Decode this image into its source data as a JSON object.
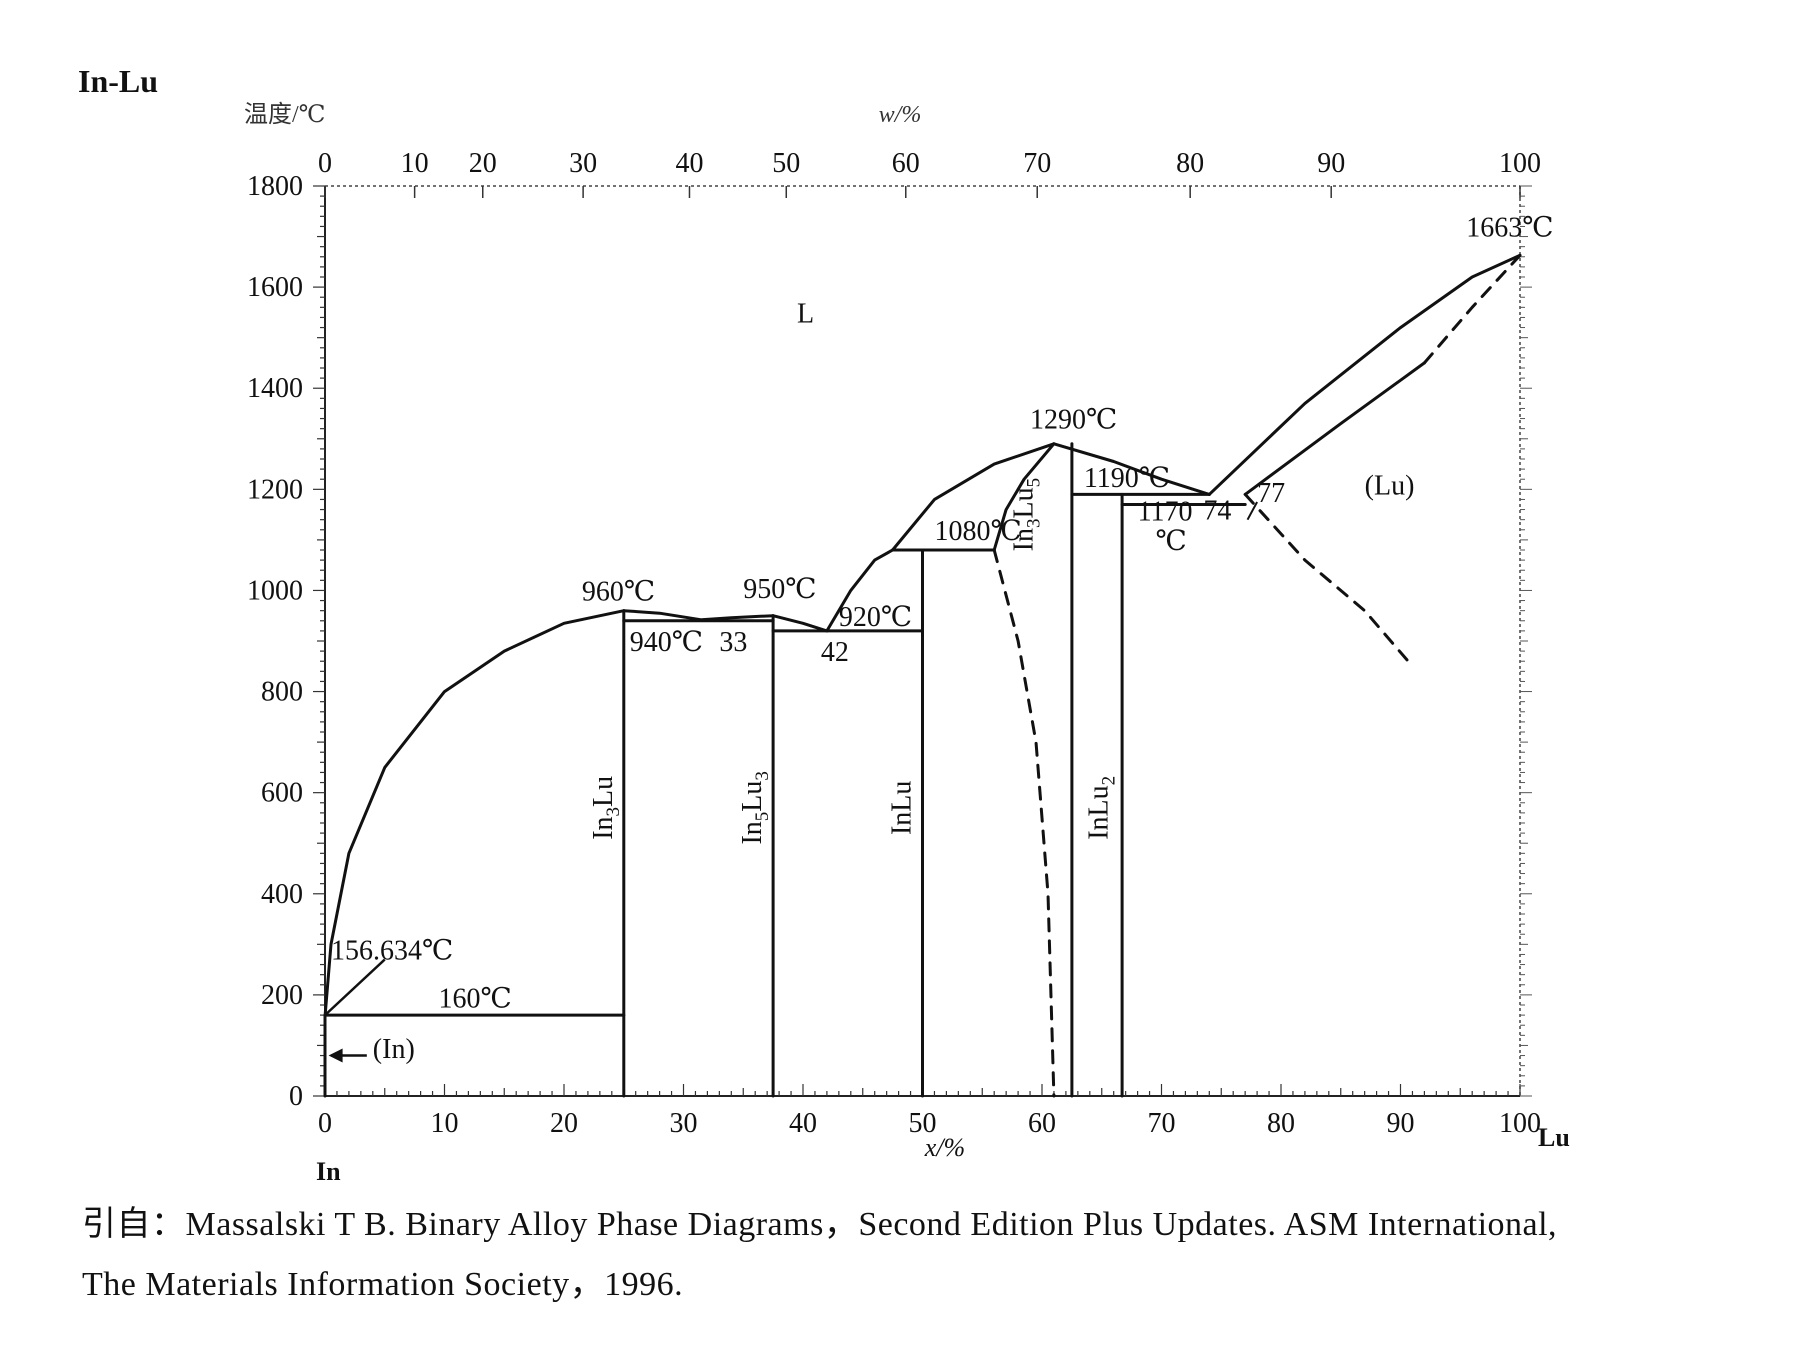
{
  "figure": {
    "system_label": "In-Lu",
    "left_axis_title": "温度/℃",
    "top_axis_title": "w/%",
    "bottom_axis_title": "x/%",
    "left_element": "In",
    "right_element": "Lu"
  },
  "chart_data": {
    "type": "line",
    "title": "In-Lu",
    "xlabel": "x/%",
    "ylabel": "温度/℃",
    "x2label": "w/%",
    "xlim": [
      0,
      100
    ],
    "ylim": [
      0,
      1800
    ],
    "x_ticks": [
      0,
      10,
      20,
      30,
      40,
      50,
      60,
      70,
      80,
      90,
      100
    ],
    "y_ticks": [
      0,
      200,
      400,
      600,
      800,
      1000,
      1200,
      1400,
      1600,
      1800
    ],
    "x2_ticks": [
      0,
      10,
      20,
      30,
      40,
      50,
      60,
      70,
      80,
      90,
      100
    ],
    "x2_tick_positions_at_percent": [
      0,
      7.5,
      13.2,
      21.6,
      30.5,
      38.6,
      48.6,
      59.6,
      72.4,
      84.2,
      100
    ],
    "grid": false,
    "legend": "none",
    "series": [
      {
        "style": "solid",
        "points": [
          [
            0,
            157
          ],
          [
            0.5,
            300
          ],
          [
            2,
            480
          ],
          [
            5,
            650
          ],
          [
            10,
            800
          ],
          [
            15,
            880
          ],
          [
            20,
            935
          ],
          [
            25,
            960
          ]
        ]
      },
      {
        "style": "solid",
        "points": [
          [
            25,
            960
          ],
          [
            28,
            955
          ],
          [
            31.5,
            942
          ],
          [
            34,
            946
          ],
          [
            37.5,
            950
          ]
        ]
      },
      {
        "style": "solid",
        "points": [
          [
            37.5,
            950
          ],
          [
            40,
            935
          ],
          [
            42,
            920
          ]
        ]
      },
      {
        "style": "solid",
        "points": [
          [
            42,
            920
          ],
          [
            44,
            1000
          ],
          [
            46,
            1060
          ],
          [
            47.5,
            1080
          ]
        ]
      },
      {
        "style": "solid",
        "points": [
          [
            47.5,
            1080
          ],
          [
            51,
            1180
          ],
          [
            56,
            1250
          ],
          [
            61,
            1290
          ]
        ]
      },
      {
        "style": "solid",
        "points": [
          [
            56,
            1080
          ],
          [
            57,
            1160
          ],
          [
            58.5,
            1220
          ],
          [
            61,
            1290
          ]
        ]
      },
      {
        "style": "solid",
        "points": [
          [
            61,
            1290
          ],
          [
            66,
            1255
          ],
          [
            70,
            1220
          ],
          [
            74,
            1190
          ]
        ]
      },
      {
        "style": "solid",
        "points": [
          [
            74,
            1190
          ],
          [
            82,
            1370
          ],
          [
            90,
            1520
          ],
          [
            96,
            1620
          ],
          [
            100,
            1663
          ]
        ]
      },
      {
        "style": "solid",
        "points": [
          [
            77,
            1190
          ],
          [
            85,
            1330
          ],
          [
            92,
            1450
          ]
        ]
      },
      {
        "style": "dashed",
        "points": [
          [
            92,
            1450
          ],
          [
            96,
            1560
          ],
          [
            100,
            1663
          ]
        ]
      },
      {
        "style": "dashed",
        "points": [
          [
            56,
            1080
          ],
          [
            58,
            900
          ],
          [
            59.5,
            700
          ],
          [
            60.5,
            400
          ],
          [
            61,
            0
          ]
        ]
      },
      {
        "style": "dashed",
        "points": [
          [
            77,
            1190
          ],
          [
            82,
            1060
          ],
          [
            87,
            960
          ],
          [
            91,
            850
          ]
        ]
      },
      {
        "style": "solid",
        "points": [
          [
            0,
            157
          ],
          [
            0,
            0
          ]
        ]
      },
      {
        "style": "solid",
        "points": [
          [
            0,
            160
          ],
          [
            25,
            160
          ]
        ]
      },
      {
        "style": "solid",
        "points": [
          [
            25,
            940
          ],
          [
            37.5,
            940
          ]
        ]
      },
      {
        "style": "solid",
        "points": [
          [
            37.5,
            920
          ],
          [
            50,
            920
          ]
        ]
      },
      {
        "style": "solid",
        "points": [
          [
            47.5,
            1080
          ],
          [
            56,
            1080
          ]
        ]
      },
      {
        "style": "solid",
        "points": [
          [
            62.5,
            1190
          ],
          [
            74,
            1190
          ]
        ]
      },
      {
        "style": "solid",
        "points": [
          [
            66.7,
            1170
          ],
          [
            77,
            1170
          ]
        ]
      },
      {
        "style": "solid",
        "points": [
          [
            25,
            960
          ],
          [
            25,
            0
          ]
        ]
      },
      {
        "style": "solid",
        "points": [
          [
            37.5,
            950
          ],
          [
            37.5,
            0
          ]
        ]
      },
      {
        "style": "solid",
        "points": [
          [
            50,
            1080
          ],
          [
            50,
            0
          ]
        ]
      },
      {
        "style": "solid",
        "points": [
          [
            62.5,
            1290
          ],
          [
            62.5,
            0
          ]
        ]
      },
      {
        "style": "solid",
        "points": [
          [
            66.7,
            1190
          ],
          [
            66.7,
            0
          ]
        ]
      }
    ],
    "phases": [
      {
        "label": "L",
        "x": 39.5,
        "y": 1530
      },
      {
        "label": "(Lu)",
        "x": 87,
        "y": 1190
      },
      {
        "label": "(In)",
        "x": 4,
        "y": 75
      }
    ],
    "compounds": [
      {
        "label": "In",
        "sub": "3",
        "label2": "Lu",
        "sub2": "",
        "x": 24,
        "y": 570
      },
      {
        "label": "In",
        "sub": "5",
        "label2": "Lu",
        "sub2": "3",
        "x": 36.5,
        "y": 570
      },
      {
        "label": "InLu",
        "sub": "",
        "label2": "",
        "sub2": "",
        "x": 49,
        "y": 570
      },
      {
        "label": "In",
        "sub": "3",
        "label2": "Lu",
        "sub2": "5",
        "x": 59.2,
        "y": 1150
      },
      {
        "label": "InLu",
        "sub": "2",
        "label2": "",
        "sub2": "",
        "x": 65.5,
        "y": 570
      }
    ],
    "annotations": [
      {
        "text": "1663℃",
        "x": 95.5,
        "y": 1700
      },
      {
        "text": "1290℃",
        "x": 59,
        "y": 1320
      },
      {
        "text": "1190℃",
        "x": 63.5,
        "y": 1205
      },
      {
        "text": "1170",
        "x": 68,
        "y": 1138
      },
      {
        "text": "℃",
        "x": 69.5,
        "y": 1080
      },
      {
        "text": "74",
        "x": 73.5,
        "y": 1140
      },
      {
        "text": "77",
        "x": 78,
        "y": 1175
      },
      {
        "text": "1080℃",
        "x": 51,
        "y": 1100
      },
      {
        "text": "960℃",
        "x": 21.5,
        "y": 980
      },
      {
        "text": "950℃",
        "x": 35,
        "y": 985
      },
      {
        "text": "940℃",
        "x": 25.5,
        "y": 880
      },
      {
        "text": "33",
        "x": 33,
        "y": 880
      },
      {
        "text": "920℃",
        "x": 43,
        "y": 930
      },
      {
        "text": "42",
        "x": 41.5,
        "y": 860
      },
      {
        "text": "156.634℃",
        "x": 0.5,
        "y": 270
      },
      {
        "text": "160℃",
        "x": 9.5,
        "y": 175
      }
    ]
  },
  "citation": {
    "line1": "引自：Massalski T B.  Binary Alloy Phase Diagrams，Second Edition Plus Updates.  ASM International,",
    "line2": "The Materials Information Society，1996."
  }
}
